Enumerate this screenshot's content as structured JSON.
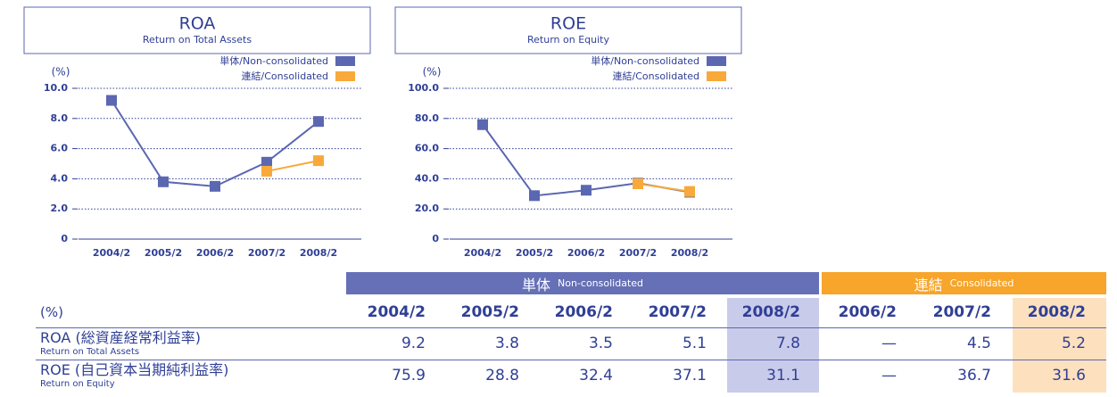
{
  "chart_data": [
    {
      "type": "line",
      "title": "ROA",
      "subtitle": "Return on Total Assets",
      "ylabel": "(%)",
      "categories": [
        "2004/2",
        "2005/2",
        "2006/2",
        "2007/2",
        "2008/2"
      ],
      "series": [
        {
          "name": "単体/Non-consolidated",
          "color": "#5b67b1",
          "values": [
            9.2,
            3.8,
            3.5,
            5.1,
            7.8
          ]
        },
        {
          "name": "連結/Consolidated",
          "color": "#f8a93a",
          "values": [
            null,
            null,
            null,
            4.5,
            5.2
          ]
        }
      ],
      "ylim": [
        0,
        10
      ],
      "yticks": [
        0,
        {
          "value": 2,
          "label": "2.0"
        },
        {
          "value": 4,
          "label": "4.0"
        },
        {
          "value": 6,
          "label": "6.0"
        },
        {
          "value": 8,
          "label": "8.0"
        },
        {
          "value": 10,
          "label": "10.0"
        }
      ],
      "grid": true
    },
    {
      "type": "line",
      "title": "ROE",
      "subtitle": "Return on Equity",
      "ylabel": "(%)",
      "categories": [
        "2004/2",
        "2005/2",
        "2006/2",
        "2007/2",
        "2008/2"
      ],
      "series": [
        {
          "name": "単体/Non-consolidated",
          "color": "#5b67b1",
          "values": [
            75.9,
            28.8,
            32.4,
            37.1,
            31.1
          ]
        },
        {
          "name": "連結/Consolidated",
          "color": "#f8a93a",
          "values": [
            null,
            null,
            null,
            36.7,
            31.6
          ]
        }
      ],
      "ylim": [
        0,
        100
      ],
      "yticks": [
        0,
        {
          "value": 20,
          "label": "20.0"
        },
        {
          "value": 40,
          "label": "40.0"
        },
        {
          "value": 60,
          "label": "60.0"
        },
        {
          "value": 80,
          "label": "80.0"
        },
        {
          "value": 100,
          "label": "100.0"
        }
      ],
      "grid": true
    }
  ],
  "table": {
    "groups": [
      {
        "title": "単体",
        "subtitle": "Non-consolidated"
      },
      {
        "title": "連結",
        "subtitle": "Consolidated"
      }
    ],
    "unit": "(%)",
    "columns": [
      "2004/2",
      "2005/2",
      "2006/2",
      "2007/2",
      "2008/2",
      "2006/2",
      "2007/2",
      "2008/2"
    ],
    "rows": [
      {
        "label": "ROA (総資産経常利益率)",
        "sublabel": "Return on Total Assets",
        "values": [
          9.2,
          3.8,
          3.5,
          5.1,
          7.8,
          "—",
          4.5,
          5.2
        ]
      },
      {
        "label": "ROE (自己資本当期純利益率)",
        "sublabel": "Return on Equity",
        "values": [
          75.9,
          28.8,
          32.4,
          37.1,
          31.1,
          "—",
          36.7,
          31.6
        ]
      }
    ]
  }
}
